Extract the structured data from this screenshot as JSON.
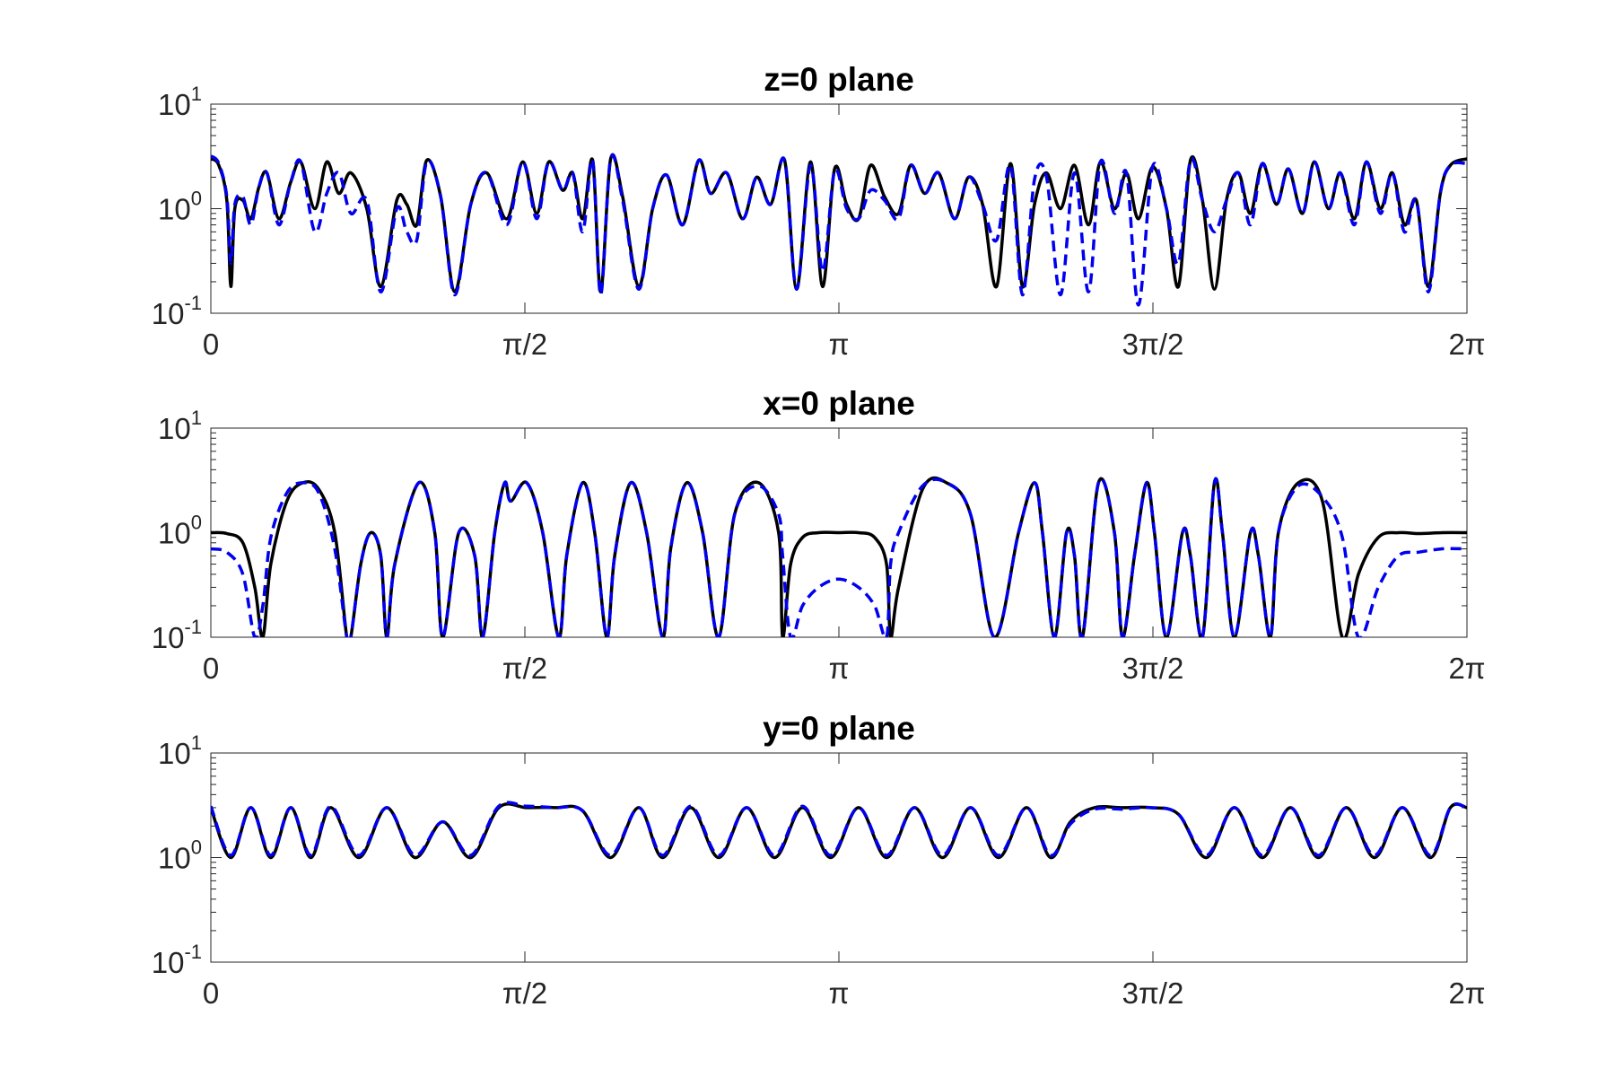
{
  "chart_data": [
    {
      "type": "line",
      "title": "z=0 plane",
      "xlim": [
        0,
        6.2832
      ],
      "ylim": [
        0.1,
        10
      ],
      "yscale": "log",
      "grid": false,
      "x_ticks": [
        "0",
        "π/2",
        "π",
        "3π/2",
        "2π"
      ],
      "x_tick_values": [
        0,
        1.5708,
        3.1416,
        4.7124,
        6.2832
      ],
      "y_ticks": [
        {
          "base": "10",
          "exp": "-1",
          "value": 0.1
        },
        {
          "base": "10",
          "exp": "0",
          "value": 1
        },
        {
          "base": "10",
          "exp": "1",
          "value": 10
        }
      ],
      "series": [
        {
          "style": "solid",
          "color": "#000000",
          "x": [
            0,
            0.04,
            0.08,
            0.1,
            0.12,
            0.16,
            0.2,
            0.24,
            0.28,
            0.34,
            0.4,
            0.45,
            0.52,
            0.58,
            0.64,
            0.7,
            0.78,
            0.85,
            0.93,
            0.98,
            1.03,
            1.08,
            1.15,
            1.22,
            1.3,
            1.38,
            1.48,
            1.56,
            1.63,
            1.69,
            1.76,
            1.81,
            1.86,
            1.91,
            1.95,
            2.0,
            2.06,
            2.14,
            2.21,
            2.28,
            2.36,
            2.44,
            2.5,
            2.58,
            2.66,
            2.73,
            2.8,
            2.87,
            2.93,
            3.0,
            3.06,
            3.12,
            3.18,
            3.24,
            3.3,
            3.37,
            3.44,
            3.5,
            3.57,
            3.64,
            3.72,
            3.79,
            3.86,
            3.93,
            4.0,
            4.06,
            4.12,
            4.18,
            4.25,
            4.32,
            4.39,
            4.45,
            4.52,
            4.58,
            4.64,
            4.71,
            4.78,
            4.84,
            4.9,
            4.96,
            5.02,
            5.08,
            5.14,
            5.2,
            5.26,
            5.33,
            5.39,
            5.46,
            5.52,
            5.59,
            5.65,
            5.72,
            5.78,
            5.85,
            5.91,
            5.97,
            6.03,
            6.09,
            6.15,
            6.2,
            6.2832
          ],
          "y": [
            3.0,
            2.6,
            1.2,
            0.18,
            1.0,
            1.2,
            0.8,
            1.6,
            2.2,
            0.8,
            1.8,
            2.8,
            1.0,
            2.8,
            1.4,
            2.2,
            1.0,
            0.18,
            1.2,
            1.1,
            0.7,
            2.9,
            1.3,
            0.16,
            1.1,
            2.2,
            0.8,
            2.8,
            0.9,
            2.8,
            1.5,
            2.2,
            0.8,
            2.9,
            0.16,
            3.0,
            1.3,
            0.18,
            1.0,
            2.1,
            0.7,
            2.9,
            1.4,
            2.2,
            0.8,
            2.0,
            1.1,
            2.9,
            0.17,
            2.8,
            0.18,
            2.4,
            1.1,
            0.8,
            2.6,
            1.3,
            0.9,
            2.6,
            1.4,
            2.2,
            0.8,
            2.0,
            1.1,
            0.18,
            2.7,
            0.18,
            1.1,
            2.2,
            1.0,
            2.6,
            0.7,
            2.8,
            1.0,
            2.2,
            0.8,
            2.5,
            1.0,
            0.18,
            2.9,
            1.2,
            0.17,
            1.2,
            2.2,
            0.9,
            2.7,
            1.1,
            2.4,
            0.9,
            2.8,
            1.0,
            2.2,
            0.8,
            2.8,
            1.0,
            2.2,
            0.7,
            1.2,
            0.18,
            1.4,
            2.6,
            3.0
          ]
        },
        {
          "style": "dashed",
          "color": "#0000ee",
          "x": [
            0,
            0.04,
            0.08,
            0.1,
            0.12,
            0.16,
            0.2,
            0.24,
            0.28,
            0.34,
            0.4,
            0.45,
            0.52,
            0.58,
            0.64,
            0.7,
            0.78,
            0.85,
            0.93,
            0.98,
            1.03,
            1.08,
            1.15,
            1.22,
            1.3,
            1.38,
            1.48,
            1.56,
            1.63,
            1.69,
            1.76,
            1.81,
            1.86,
            1.91,
            1.95,
            2.0,
            2.06,
            2.14,
            2.21,
            2.28,
            2.36,
            2.44,
            2.5,
            2.58,
            2.66,
            2.73,
            2.8,
            2.87,
            2.93,
            3.0,
            3.06,
            3.12,
            3.18,
            3.24,
            3.3,
            3.37,
            3.44,
            3.5,
            3.57,
            3.64,
            3.72,
            3.79,
            3.86,
            3.93,
            4.0,
            4.06,
            4.12,
            4.18,
            4.25,
            4.32,
            4.39,
            4.45,
            4.52,
            4.58,
            4.64,
            4.71,
            4.78,
            4.84,
            4.9,
            4.96,
            5.02,
            5.08,
            5.14,
            5.2,
            5.26,
            5.33,
            5.39,
            5.46,
            5.52,
            5.59,
            5.65,
            5.72,
            5.78,
            5.85,
            5.91,
            5.97,
            6.03,
            6.09,
            6.15,
            6.2,
            6.2832
          ],
          "y": [
            3.2,
            2.7,
            1.3,
            0.3,
            1.1,
            1.3,
            0.7,
            1.6,
            2.2,
            0.7,
            1.8,
            2.8,
            0.6,
            1.4,
            2.2,
            0.9,
            1.2,
            0.16,
            1.0,
            0.6,
            0.5,
            2.8,
            1.3,
            0.15,
            1.1,
            2.2,
            0.7,
            2.8,
            0.8,
            2.8,
            1.5,
            2.2,
            0.6,
            2.9,
            0.15,
            3.0,
            1.2,
            0.17,
            1.0,
            2.1,
            0.7,
            2.9,
            1.4,
            2.2,
            0.8,
            2.0,
            1.1,
            2.9,
            0.17,
            2.6,
            0.25,
            2.3,
            1.0,
            0.8,
            1.5,
            1.2,
            0.8,
            2.6,
            1.4,
            2.2,
            0.8,
            2.0,
            1.1,
            0.5,
            2.6,
            0.15,
            1.9,
            2.0,
            0.15,
            2.2,
            0.16,
            2.8,
            0.9,
            2.2,
            0.12,
            2.5,
            1.0,
            0.3,
            2.9,
            1.2,
            0.6,
            1.2,
            2.2,
            0.7,
            2.7,
            1.1,
            2.4,
            0.9,
            2.8,
            1.0,
            2.2,
            0.7,
            2.8,
            0.9,
            2.2,
            0.6,
            1.2,
            0.16,
            1.4,
            2.6,
            2.7
          ]
        }
      ]
    },
    {
      "type": "line",
      "title": "x=0 plane",
      "xlim": [
        0,
        6.2832
      ],
      "ylim": [
        0.1,
        10
      ],
      "yscale": "log",
      "grid": false,
      "x_ticks": [
        "0",
        "π/2",
        "π",
        "3π/2",
        "2π"
      ],
      "x_tick_values": [
        0,
        1.5708,
        3.1416,
        4.7124,
        6.2832
      ],
      "y_ticks": [
        {
          "base": "10",
          "exp": "-1",
          "value": 0.1
        },
        {
          "base": "10",
          "exp": "0",
          "value": 1
        },
        {
          "base": "10",
          "exp": "1",
          "value": 10
        }
      ],
      "series": [
        {
          "style": "solid",
          "color": "#000000",
          "x": [
            0,
            0.08,
            0.16,
            0.22,
            0.26,
            0.3,
            0.38,
            0.46,
            0.54,
            0.62,
            0.68,
            0.7,
            0.75,
            0.8,
            0.85,
            0.88,
            0.92,
            1.04,
            1.12,
            1.16,
            1.24,
            1.32,
            1.36,
            1.42,
            1.47,
            1.5,
            1.58,
            1.66,
            1.74,
            1.78,
            1.86,
            1.92,
            1.98,
            2.02,
            2.1,
            2.18,
            2.26,
            2.3,
            2.38,
            2.46,
            2.54,
            2.62,
            2.74,
            2.84,
            2.86,
            2.9,
            2.96,
            3.04,
            3.14,
            3.24,
            3.32,
            3.38,
            3.4,
            3.44,
            3.56,
            3.68,
            3.8,
            3.92,
            4.04,
            4.12,
            4.16,
            4.22,
            4.28,
            4.32,
            4.36,
            4.44,
            4.52,
            4.56,
            4.62,
            4.68,
            4.72,
            4.78,
            4.86,
            4.9,
            4.96,
            5.02,
            5.06,
            5.12,
            5.2,
            5.24,
            5.3,
            5.34,
            5.44,
            5.56,
            5.66,
            5.74,
            5.84,
            5.94,
            6.04,
            6.16,
            6.2832
          ],
          "y": [
            1.0,
            0.98,
            0.8,
            0.3,
            0.1,
            0.5,
            2.0,
            3.0,
            2.6,
            1.0,
            0.1,
            0.1,
            0.5,
            1.0,
            0.6,
            0.1,
            0.5,
            3.0,
            1.0,
            0.1,
            1.0,
            0.6,
            0.1,
            1.0,
            3.0,
            2.0,
            3.0,
            1.0,
            0.1,
            0.6,
            3.0,
            1.0,
            0.1,
            0.6,
            3.0,
            1.0,
            0.1,
            0.7,
            3.0,
            1.0,
            0.1,
            1.5,
            3.0,
            1.0,
            0.1,
            0.5,
            0.9,
            1.0,
            1.0,
            1.0,
            0.9,
            0.5,
            0.1,
            0.3,
            2.6,
            3.0,
            1.5,
            0.1,
            1.0,
            3.0,
            1.0,
            0.1,
            1.0,
            0.6,
            0.1,
            3.0,
            1.0,
            0.1,
            0.6,
            3.0,
            1.0,
            0.1,
            1.0,
            0.6,
            0.1,
            3.0,
            1.0,
            0.1,
            1.0,
            0.6,
            0.1,
            1.0,
            3.0,
            2.0,
            0.1,
            0.4,
            0.9,
            1.0,
            0.98,
            1.0,
            1.0
          ]
        },
        {
          "style": "dashed",
          "color": "#0000ee",
          "x": [
            0,
            0.08,
            0.16,
            0.22,
            0.26,
            0.3,
            0.38,
            0.46,
            0.54,
            0.62,
            0.68,
            0.7,
            0.75,
            0.8,
            0.85,
            0.88,
            0.92,
            1.04,
            1.12,
            1.16,
            1.24,
            1.32,
            1.36,
            1.42,
            1.47,
            1.5,
            1.58,
            1.66,
            1.74,
            1.78,
            1.86,
            1.92,
            1.98,
            2.02,
            2.1,
            2.18,
            2.26,
            2.3,
            2.38,
            2.46,
            2.54,
            2.62,
            2.74,
            2.84,
            2.86,
            2.9,
            2.96,
            3.04,
            3.14,
            3.24,
            3.32,
            3.38,
            3.4,
            3.44,
            3.56,
            3.68,
            3.8,
            3.92,
            4.04,
            4.12,
            4.16,
            4.22,
            4.28,
            4.32,
            4.36,
            4.44,
            4.52,
            4.56,
            4.62,
            4.68,
            4.72,
            4.78,
            4.86,
            4.9,
            4.96,
            5.02,
            5.06,
            5.12,
            5.2,
            5.24,
            5.3,
            5.34,
            5.44,
            5.56,
            5.66,
            5.74,
            5.84,
            5.94,
            6.04,
            6.16,
            6.2832
          ],
          "y": [
            0.7,
            0.65,
            0.4,
            0.1,
            0.2,
            0.9,
            2.4,
            3.0,
            2.4,
            0.7,
            0.1,
            0.1,
            0.5,
            1.0,
            0.6,
            0.1,
            0.5,
            3.0,
            1.0,
            0.1,
            1.0,
            0.6,
            0.1,
            1.0,
            3.0,
            2.0,
            3.0,
            1.0,
            0.1,
            0.6,
            3.0,
            1.0,
            0.1,
            0.6,
            3.0,
            1.0,
            0.1,
            0.7,
            3.0,
            1.0,
            0.1,
            1.5,
            2.8,
            1.5,
            0.6,
            0.1,
            0.2,
            0.3,
            0.36,
            0.3,
            0.2,
            0.1,
            0.5,
            1.0,
            2.8,
            3.0,
            1.5,
            0.1,
            1.0,
            3.0,
            1.0,
            0.1,
            1.0,
            0.6,
            0.1,
            3.0,
            1.0,
            0.1,
            0.6,
            3.0,
            1.0,
            0.1,
            1.0,
            0.6,
            0.1,
            3.0,
            1.0,
            0.1,
            1.0,
            0.6,
            0.1,
            1.0,
            2.8,
            2.2,
            0.9,
            0.1,
            0.3,
            0.6,
            0.65,
            0.7,
            0.7
          ]
        }
      ]
    },
    {
      "type": "line",
      "title": "y=0 plane",
      "xlim": [
        0,
        6.2832
      ],
      "ylim": [
        0.1,
        10
      ],
      "yscale": "log",
      "grid": false,
      "x_ticks": [
        "0",
        "π/2",
        "π",
        "3π/2",
        "2π"
      ],
      "x_tick_values": [
        0,
        1.5708,
        3.1416,
        4.7124,
        6.2832
      ],
      "y_ticks": [
        {
          "base": "10",
          "exp": "-1",
          "value": 0.1
        },
        {
          "base": "10",
          "exp": "0",
          "value": 1
        },
        {
          "base": "10",
          "exp": "1",
          "value": 10
        }
      ],
      "series": [
        {
          "style": "solid",
          "color": "#000000",
          "x": [
            0,
            0.1,
            0.2,
            0.3,
            0.4,
            0.5,
            0.6,
            0.74,
            0.88,
            1.02,
            1.16,
            1.3,
            1.44,
            1.58,
            1.72,
            1.86,
            2.0,
            2.14,
            2.26,
            2.4,
            2.54,
            2.68,
            2.82,
            2.96,
            3.1,
            3.24,
            3.38,
            3.52,
            3.66,
            3.8,
            3.94,
            4.08,
            4.2,
            4.3,
            4.42,
            4.56,
            4.7,
            4.84,
            4.98,
            5.12,
            5.26,
            5.4,
            5.54,
            5.68,
            5.82,
            5.96,
            6.1,
            6.2,
            6.2832
          ],
          "y": [
            3.0,
            1.0,
            3.0,
            1.0,
            3.0,
            1.0,
            3.0,
            1.0,
            3.0,
            1.0,
            2.2,
            1.0,
            3.0,
            3.0,
            3.0,
            2.8,
            1.0,
            3.0,
            1.0,
            3.0,
            1.0,
            3.0,
            1.0,
            3.0,
            1.0,
            3.0,
            1.0,
            3.0,
            1.0,
            3.0,
            1.0,
            3.0,
            1.0,
            2.2,
            3.0,
            3.0,
            3.0,
            2.6,
            1.0,
            3.0,
            1.0,
            3.0,
            1.0,
            3.0,
            1.0,
            3.0,
            1.0,
            3.0,
            3.0
          ]
        },
        {
          "style": "dashed",
          "color": "#0000ee",
          "x": [
            0,
            0.1,
            0.2,
            0.3,
            0.4,
            0.5,
            0.6,
            0.74,
            0.88,
            1.02,
            1.16,
            1.3,
            1.44,
            1.58,
            1.72,
            1.86,
            2.0,
            2.14,
            2.26,
            2.4,
            2.54,
            2.68,
            2.82,
            2.96,
            3.1,
            3.24,
            3.38,
            3.52,
            3.66,
            3.8,
            3.94,
            4.08,
            4.2,
            4.3,
            4.42,
            4.56,
            4.7,
            4.84,
            4.98,
            5.12,
            5.26,
            5.4,
            5.54,
            5.68,
            5.82,
            5.96,
            6.1,
            6.2,
            6.2832
          ],
          "y": [
            3.1,
            1.05,
            3.0,
            1.05,
            3.0,
            1.05,
            3.1,
            1.05,
            3.0,
            1.05,
            2.2,
            1.05,
            3.1,
            3.1,
            3.0,
            2.8,
            1.05,
            3.0,
            1.05,
            3.1,
            1.05,
            3.0,
            1.05,
            3.1,
            1.05,
            3.0,
            1.05,
            3.0,
            1.05,
            3.0,
            1.05,
            3.0,
            1.05,
            2.1,
            2.9,
            2.9,
            3.0,
            2.6,
            1.05,
            3.0,
            1.05,
            3.0,
            1.05,
            3.0,
            1.05,
            3.0,
            1.05,
            3.0,
            3.0
          ]
        }
      ]
    }
  ]
}
